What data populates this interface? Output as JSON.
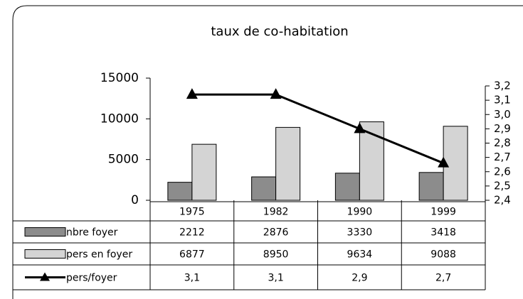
{
  "chart_data": {
    "type": "bar",
    "title": "taux de co-habitation",
    "categories": [
      "1975",
      "1982",
      "1990",
      "1999"
    ],
    "series": [
      {
        "name": "nbre foyer",
        "color": "#8c8c8c",
        "values": [
          2212,
          2876,
          3330,
          3418
        ]
      },
      {
        "name": "pers en foyer",
        "color": "#d4d4d4",
        "values": [
          6877,
          8950,
          9634,
          9088
        ]
      },
      {
        "name": "pers/foyer",
        "color": "#000000",
        "type": "line",
        "axis": "y2",
        "values": [
          3.14,
          3.14,
          2.9,
          2.66
        ],
        "value_labels": [
          "3,1",
          "3,1",
          "2,9",
          "2,7"
        ]
      }
    ],
    "ylim": [
      0,
      15000
    ],
    "yticks": [
      0,
      5000,
      10000,
      15000
    ],
    "y2lim": [
      2.4,
      3.2
    ],
    "y2ticks": [
      {
        "value": 2.4,
        "label": "2,4"
      },
      {
        "value": 2.5,
        "label": "2,5"
      },
      {
        "value": 2.6,
        "label": "2,6"
      },
      {
        "value": 2.7,
        "label": "2,7"
      },
      {
        "value": 2.8,
        "label": "2,8"
      },
      {
        "value": 2.9,
        "label": "2,9"
      },
      {
        "value": 3.0,
        "label": "3,0"
      },
      {
        "value": 3.1,
        "label": "3,1"
      },
      {
        "value": 3.2,
        "label": "3,2"
      }
    ],
    "data_table": true
  }
}
